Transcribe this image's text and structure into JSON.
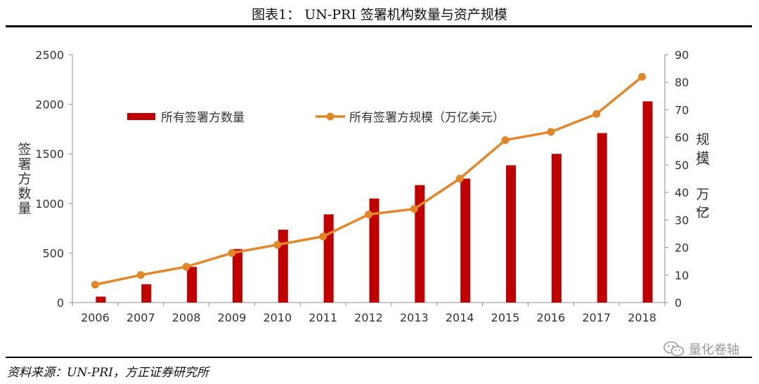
{
  "title": "图表1：  UN-PRI 签署机构数量与资产规模",
  "source": "资料来源：UN-PRI，方正证券研究所",
  "watermark": {
    "text": "量化卷轴",
    "icon": "wechat-icon"
  },
  "colors": {
    "bar": "#c00000",
    "line": "#e2862a",
    "axis": "#8c8c8c",
    "text": "#333333"
  },
  "chart_data": {
    "type": "bar+line",
    "categories": [
      "2006",
      "2007",
      "2008",
      "2009",
      "2010",
      "2011",
      "2012",
      "2013",
      "2014",
      "2015",
      "2016",
      "2017",
      "2018"
    ],
    "series": [
      {
        "name": "所有签署方数量",
        "type": "bar",
        "axis": "left",
        "values": [
          60,
          185,
          360,
          540,
          735,
          890,
          1050,
          1185,
          1250,
          1385,
          1500,
          1710,
          2030
        ]
      },
      {
        "name": "所有签署方规模（万亿美元）",
        "type": "line",
        "axis": "right",
        "values": [
          6.5,
          10,
          13,
          18,
          21,
          24,
          32,
          34,
          45,
          59,
          62,
          68.5,
          82
        ]
      }
    ],
    "y_left": {
      "label": "签署方数量",
      "min": 0,
      "max": 2500,
      "ticks": [
        0,
        500,
        1000,
        1500,
        2000,
        2500
      ]
    },
    "y_right": {
      "label": "规模（万亿）",
      "min": 0,
      "max": 90,
      "ticks": [
        0,
        10,
        20,
        30,
        40,
        50,
        60,
        70,
        80,
        90
      ]
    },
    "legend_position": "top",
    "grid": false
  }
}
